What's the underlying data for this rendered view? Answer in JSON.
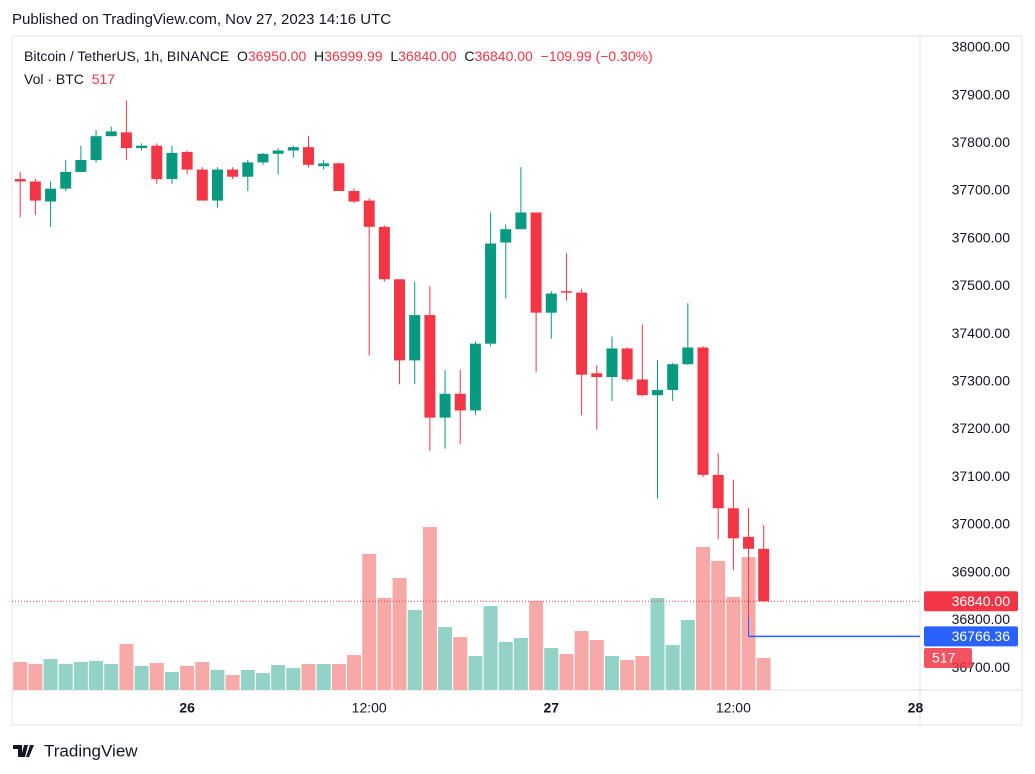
{
  "published": "Published on TradingView.com, Nov 27, 2023 14:16 UTC",
  "footer": "TradingView",
  "chart_data": {
    "type": "candlestick",
    "title": "Bitcoin / TetherUS, 1h, BINANCE",
    "legend": {
      "open_label": "O",
      "open": "36950.00",
      "high_label": "H",
      "high": "36999.99",
      "low_label": "L",
      "low": "36840.00",
      "close_label": "C",
      "close": "36840.00",
      "change": "−109.99 (−0.30%)"
    },
    "volume_title": "Vol · BTC",
    "volume_label": "517",
    "up_color": "#089981",
    "down_color": "#f23645",
    "volume_up_color": "#92d2c7",
    "volume_down_color": "#f7a9a7",
    "x": [
      -11,
      -10,
      -9,
      -8,
      -7,
      -6,
      -5,
      -4,
      -3,
      -2,
      -1,
      0,
      1,
      2,
      3,
      4,
      5,
      6,
      7,
      8,
      9,
      10,
      11,
      12,
      13,
      14,
      15,
      16,
      17,
      18,
      19,
      20,
      21,
      22,
      23,
      24,
      25,
      26,
      27,
      28,
      29,
      30,
      31,
      32,
      33,
      34,
      35,
      36,
      37,
      38
    ],
    "open": [
      37725,
      37720,
      37678,
      37705,
      37740,
      37765,
      37815,
      37823,
      37790,
      37795,
      37725,
      37782,
      37745,
      37680,
      37745,
      37730,
      37760,
      37778,
      37785,
      37792,
      37752,
      37758,
      37700,
      37680,
      37625,
      37515,
      37345,
      37440,
      37225,
      37275,
      37240,
      37380,
      37592,
      37620,
      37655,
      37445,
      37490,
      37487,
      37318,
      37310,
      37370,
      37305,
      37272,
      37283,
      37337,
      37372,
      37105,
      37035,
      36975,
      36950
    ],
    "high": [
      37740,
      37725,
      37720,
      37765,
      37795,
      37828,
      37835,
      37890,
      37800,
      37800,
      37795,
      37785,
      37750,
      37750,
      37750,
      37765,
      37780,
      37790,
      37795,
      37815,
      37765,
      37760,
      37705,
      37685,
      37628,
      37515,
      37510,
      37500,
      37325,
      37325,
      37385,
      37655,
      37630,
      37750,
      37655,
      37490,
      37570,
      37495,
      37335,
      37395,
      37372,
      37420,
      37345,
      37340,
      37465,
      37375,
      37150,
      37095,
      37035,
      36999.99
    ],
    "low": [
      37645,
      37650,
      37625,
      37700,
      37740,
      37760,
      37815,
      37765,
      37785,
      37715,
      37715,
      37735,
      37680,
      37665,
      37725,
      37700,
      37755,
      37735,
      37770,
      37750,
      37745,
      37700,
      37675,
      37355,
      37510,
      37295,
      37295,
      37155,
      37160,
      37170,
      37230,
      37375,
      37475,
      37620,
      37320,
      37390,
      37470,
      37230,
      37200,
      37260,
      37300,
      37270,
      37055,
      37260,
      37335,
      37100,
      36970,
      36905,
      36770,
      36840
    ],
    "close": [
      37720,
      37680,
      37705,
      37740,
      37765,
      37815,
      37825,
      37790,
      37795,
      37725,
      37780,
      37745,
      37680,
      37745,
      37730,
      37760,
      37778,
      37785,
      37792,
      37755,
      37758,
      37700,
      37678,
      37625,
      37515,
      37345,
      37440,
      37225,
      37275,
      37240,
      37380,
      37590,
      37620,
      37655,
      37445,
      37485,
      37487,
      37315,
      37310,
      37370,
      37305,
      37272,
      37283,
      37337,
      37372,
      37105,
      37035,
      36972,
      36950,
      36840
    ],
    "volume": [
      452,
      420,
      501,
      420,
      452,
      469,
      420,
      743,
      388,
      436,
      291,
      388,
      452,
      323,
      242,
      323,
      275,
      404,
      356,
      420,
      420,
      420,
      566,
      2198,
      1487,
      1810,
      1293,
      2634,
      1018,
      856,
      549,
      1357,
      776,
      840,
      1438,
      679,
      582,
      953,
      808,
      549,
      485,
      549,
      1487,
      727,
      1131,
      2311,
      2085,
      1503,
      2149,
      517
    ],
    "xlim": [
      -11.54,
      48.3
    ],
    "xticks": [
      {
        "value": 0,
        "label": "26"
      },
      {
        "value": 12,
        "label": "12:00"
      },
      {
        "value": 24,
        "label": "27"
      },
      {
        "value": 36,
        "label": "12:00"
      },
      {
        "value": 48,
        "label": "28"
      }
    ],
    "ylim": [
      36654,
      38025
    ],
    "yticks": [
      {
        "value": 36700,
        "label": "36700.00"
      },
      {
        "value": 36800,
        "label": "36800.00"
      },
      {
        "value": 36900,
        "label": "36900.00"
      },
      {
        "value": 37000,
        "label": "37000.00"
      },
      {
        "value": 37100,
        "label": "37100.00"
      },
      {
        "value": 37200,
        "label": "37200.00"
      },
      {
        "value": 37300,
        "label": "37300.00"
      },
      {
        "value": 37400,
        "label": "37400.00"
      },
      {
        "value": 37500,
        "label": "37500.00"
      },
      {
        "value": 37600,
        "label": "37600.00"
      },
      {
        "value": 37700,
        "label": "37700.00"
      },
      {
        "value": 37800,
        "label": "37800.00"
      },
      {
        "value": 37900,
        "label": "37900.00"
      },
      {
        "value": 38000,
        "label": "38000.00"
      }
    ],
    "grid": true,
    "last_price": {
      "value": 36840,
      "label": "36840.00",
      "color": "#f23645"
    },
    "price_line": {
      "value": 36766.36,
      "label": "36766.36",
      "color": "#2962ff"
    }
  }
}
